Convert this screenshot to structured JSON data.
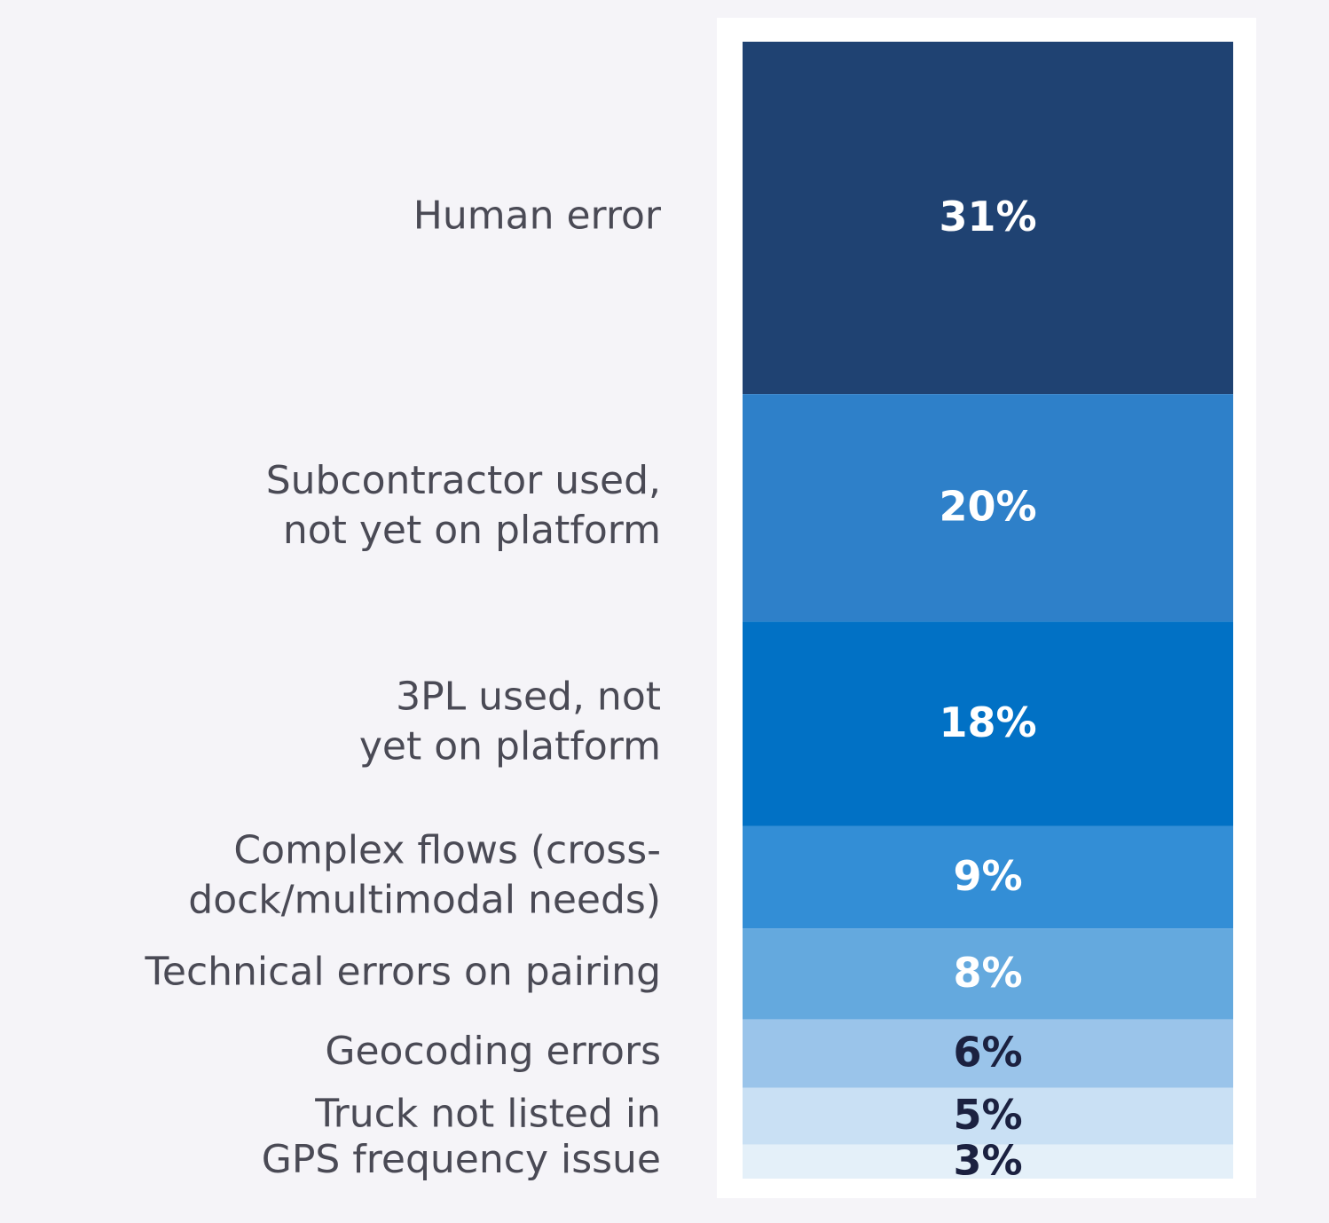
{
  "chart_data": {
    "type": "stacked-column",
    "categories": [
      [
        "Human error"
      ],
      [
        "Subcontractor used,",
        "not yet on platform"
      ],
      [
        "3PL used, not",
        "yet on platform"
      ],
      [
        "Complex flows (cross-",
        "dock/multimodal needs)"
      ],
      [
        "Technical errors on pairing"
      ],
      [
        "Geocoding errors"
      ],
      [
        "Truck not listed in"
      ],
      [
        "GPS frequency issue"
      ]
    ],
    "values": [
      31,
      20,
      18,
      9,
      8,
      6,
      5,
      3
    ],
    "value_labels": [
      "31%",
      "20%",
      "18%",
      "9%",
      "8%",
      "6%",
      "5%",
      "3%"
    ],
    "colors": [
      "#1f4272",
      "#2e80c9",
      "#0171c5",
      "#338ed6",
      "#64a9de",
      "#9ac4ea",
      "#c9e0f4",
      "#e4f0f9"
    ],
    "value_label_colors": [
      "#ffffff",
      "#ffffff",
      "#ffffff",
      "#ffffff",
      "#ffffff",
      "#1b2140",
      "#1b2140",
      "#1b2140"
    ],
    "ylim": [
      0,
      100
    ]
  }
}
